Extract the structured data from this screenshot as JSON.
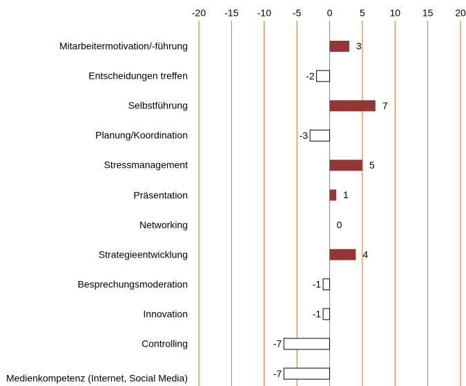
{
  "chart_data": {
    "type": "bar",
    "orientation": "horizontal",
    "categories": [
      "Mitarbeitermotivation/-führung",
      "Entscheidungen treffen",
      "Selbstführung",
      "Planung/Koordination",
      "Stressmanagement",
      "Präsentation",
      "Networking",
      "Strategieentwicklung",
      "Besprechungsmoderation",
      "Innovation",
      "Controlling",
      "Medienkompetenz (Internet, Social Media)"
    ],
    "values": [
      3,
      -2,
      7,
      -3,
      5,
      1,
      0,
      4,
      -1,
      -1,
      -7,
      -7
    ],
    "positive_color": "#943634",
    "negative_color": "#ffffff",
    "grid_color": "#e46c0a",
    "xlim": [
      -20,
      20
    ],
    "xticks": [
      -20,
      -15,
      -10,
      -5,
      0,
      5,
      10,
      15,
      20
    ],
    "grid": true
  }
}
